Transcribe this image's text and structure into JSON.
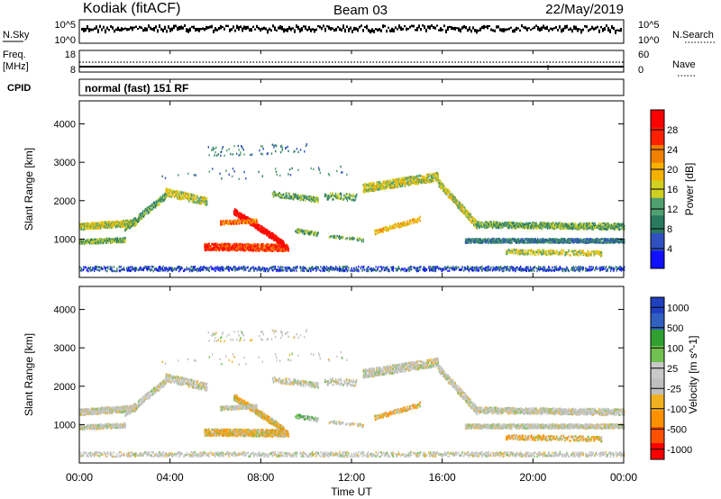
{
  "header": {
    "station": "Kodiak (fitACF)",
    "beam": "Beam 03",
    "date": "22/May/2019"
  },
  "top_panels": {
    "nsky_label": "N.Sky",
    "nsky_ticks": [
      "10^5",
      "10^0"
    ],
    "nsearch_label": "N.Search",
    "nsearch_ticks": [
      "10^5",
      "10^0"
    ],
    "freq_label": "Freq.",
    "freq_unit": "[MHz]",
    "freq_ticks": [
      "18",
      "8"
    ],
    "nave_label": "Nave",
    "nave_ticks": [
      "60",
      "0"
    ],
    "cpid_label": "CPID",
    "cpid_text": "normal (fast) 151 RF"
  },
  "colors": {
    "power": [
      "#1010ff",
      "#3050c0",
      "#2a7a60",
      "#50a070",
      "#d0d020",
      "#f5b000",
      "#f08000",
      "#ff2000",
      "#ff0000"
    ],
    "velocity": [
      "#ff0000",
      "#ff5000",
      "#ff9000",
      "#f0b020",
      "#c0c0c0",
      "#c8c8c8",
      "#70c050",
      "#30a030",
      "#3060c0",
      "#2040c0"
    ]
  },
  "chart_data": [
    {
      "type": "heatmap",
      "ylabel": "Slant Range [km]",
      "yticks": [
        "1000",
        "2000",
        "3000",
        "4000"
      ],
      "ylim": [
        0,
        4600
      ],
      "colorbar": {
        "label": "Power [dB]",
        "ticks": [
          "4",
          "8",
          "12",
          "16",
          "20",
          "24",
          "28"
        ]
      }
    },
    {
      "type": "heatmap",
      "ylabel": "Slant Range [km]",
      "yticks": [
        "1000",
        "2000",
        "3000",
        "4000"
      ],
      "ylim": [
        0,
        4600
      ],
      "xlabel": "Time UT",
      "xticks": [
        "00:00",
        "04:00",
        "08:00",
        "12:00",
        "16:00",
        "20:00",
        "00:00"
      ],
      "colorbar": {
        "label": "Velocity [m s^-1]",
        "ticks": [
          "1000",
          "500",
          "100",
          "25",
          "-25",
          "-100",
          "-500",
          "-1000"
        ]
      }
    }
  ]
}
